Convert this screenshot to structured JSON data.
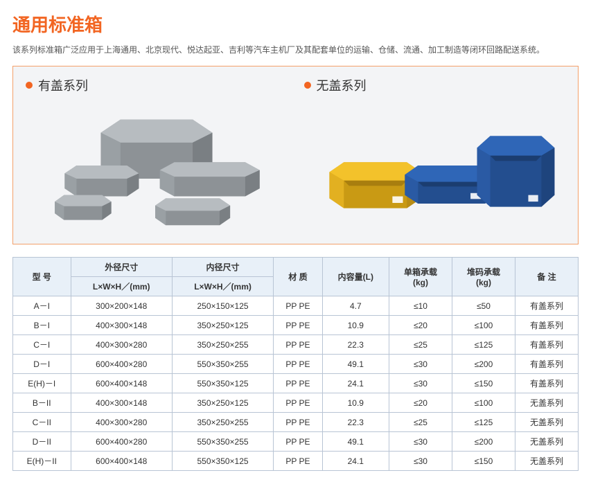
{
  "title": "通用标准箱",
  "subtitle": "该系列标准箱广泛应用于上海通用、北京现代、悦达起亚、吉利等汽车主机厂及其配套单位的运输、仓储、流通、加工制造等闭环回路配送系统。",
  "series": {
    "left_label": "有盖系列",
    "right_label": "无盖系列",
    "dot_color": "#f26522"
  },
  "colors": {
    "title": "#f26522",
    "showcase_border": "#f3a06a",
    "showcase_bg": "#f3f4f6",
    "table_border": "#b8c4d4",
    "table_head_bg": "#e8f0f8",
    "crate_grey_light": "#b7bcc0",
    "crate_grey_dark": "#8d9296",
    "crate_yellow": "#f3c22b",
    "crate_yellow_dark": "#c99a14",
    "crate_blue": "#2f66b7",
    "crate_blue_dark": "#234e8f"
  },
  "table": {
    "headers": {
      "model": "型 号",
      "outer": "外径尺寸",
      "inner": "内径尺寸",
      "dim_sub": "L×W×H／(mm)",
      "material": "材 质",
      "volume": "内容量(L)",
      "single_load": "单箱承载\n(kg)",
      "stack_load": "堆码承载\n(kg)",
      "remark": "备 注"
    },
    "rows": [
      {
        "model": "A－I",
        "outer": "300×200×148",
        "inner": "250×150×125",
        "material": "PP  PE",
        "volume": "4.7",
        "single": "≤10",
        "stack": "≤50",
        "remark": "有盖系列"
      },
      {
        "model": "B－I",
        "outer": "400×300×148",
        "inner": "350×250×125",
        "material": "PP  PE",
        "volume": "10.9",
        "single": "≤20",
        "stack": "≤100",
        "remark": "有盖系列"
      },
      {
        "model": "C－I",
        "outer": "400×300×280",
        "inner": "350×250×255",
        "material": "PP  PE",
        "volume": "22.3",
        "single": "≤25",
        "stack": "≤125",
        "remark": "有盖系列"
      },
      {
        "model": "D－I",
        "outer": "600×400×280",
        "inner": "550×350×255",
        "material": "PP  PE",
        "volume": "49.1",
        "single": "≤30",
        "stack": "≤200",
        "remark": "有盖系列"
      },
      {
        "model": "E(H)－I",
        "outer": "600×400×148",
        "inner": "550×350×125",
        "material": "PP  PE",
        "volume": "24.1",
        "single": "≤30",
        "stack": "≤150",
        "remark": "有盖系列"
      },
      {
        "model": "B－II",
        "outer": "400×300×148",
        "inner": "350×250×125",
        "material": "PP  PE",
        "volume": "10.9",
        "single": "≤20",
        "stack": "≤100",
        "remark": "无盖系列"
      },
      {
        "model": "C－II",
        "outer": "400×300×280",
        "inner": "350×250×255",
        "material": "PP  PE",
        "volume": "22.3",
        "single": "≤25",
        "stack": "≤125",
        "remark": "无盖系列"
      },
      {
        "model": "D－II",
        "outer": "600×400×280",
        "inner": "550×350×255",
        "material": "PP  PE",
        "volume": "49.1",
        "single": "≤30",
        "stack": "≤200",
        "remark": "无盖系列"
      },
      {
        "model": "E(H)－II",
        "outer": "600×400×148",
        "inner": "550×350×125",
        "material": "PP  PE",
        "volume": "24.1",
        "single": "≤30",
        "stack": "≤150",
        "remark": "无盖系列"
      }
    ]
  }
}
